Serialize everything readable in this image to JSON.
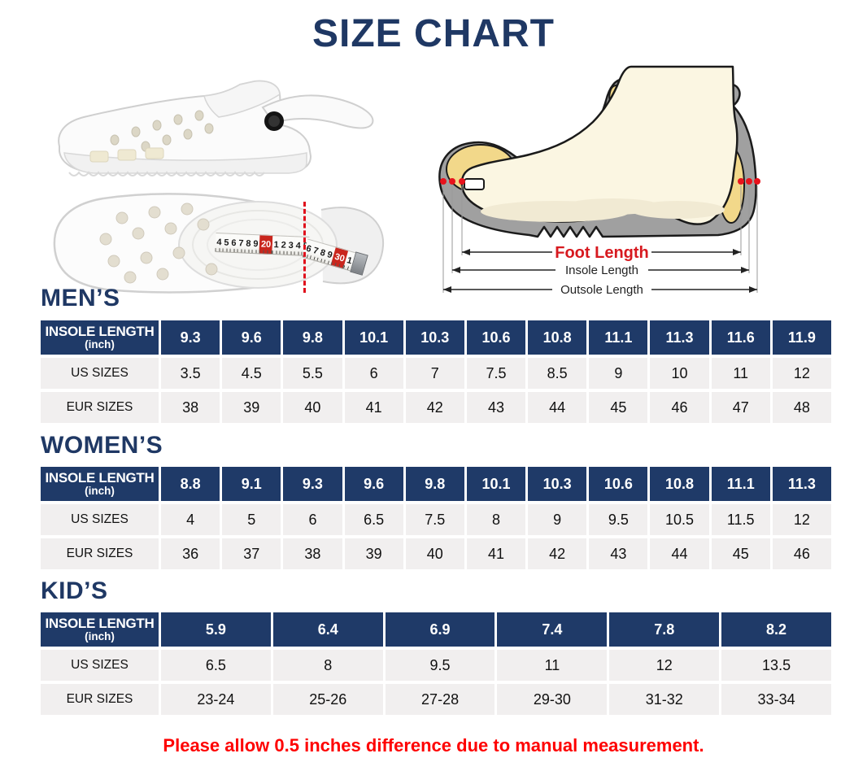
{
  "title": "SIZE CHART",
  "diagram": {
    "foot_length_label": "Foot Length",
    "insole_length_label": "Insole Length",
    "outsole_length_label": "Outsole Length"
  },
  "tape": {
    "segment1": [
      "4",
      "5",
      "6",
      "7",
      "8",
      "9",
      "20",
      "1",
      "2",
      "3",
      "4",
      "5"
    ],
    "segment2": [
      "6",
      "7",
      "8",
      "9",
      "30",
      "1"
    ],
    "red_values": [
      "20",
      "30"
    ]
  },
  "chart_data": [
    {
      "type": "table",
      "title": "MEN’S",
      "row_header": {
        "line1": "INSOLE LENGTH",
        "line2": "(inch)"
      },
      "insole_lengths": [
        "9.3",
        "9.6",
        "9.8",
        "10.1",
        "10.3",
        "10.6",
        "10.8",
        "11.1",
        "11.3",
        "11.6",
        "11.9"
      ],
      "rows": [
        {
          "label": "US SIZES",
          "values": [
            "3.5",
            "4.5",
            "5.5",
            "6",
            "7",
            "7.5",
            "8.5",
            "9",
            "10",
            "11",
            "12"
          ]
        },
        {
          "label": "EUR SIZES",
          "values": [
            "38",
            "39",
            "40",
            "41",
            "42",
            "43",
            "44",
            "45",
            "46",
            "47",
            "48"
          ]
        }
      ]
    },
    {
      "type": "table",
      "title": "WOMEN’S",
      "row_header": {
        "line1": "INSOLE LENGTH",
        "line2": "(inch)"
      },
      "insole_lengths": [
        "8.8",
        "9.1",
        "9.3",
        "9.6",
        "9.8",
        "10.1",
        "10.3",
        "10.6",
        "10.8",
        "11.1",
        "11.3"
      ],
      "rows": [
        {
          "label": "US SIZES",
          "values": [
            "4",
            "5",
            "6",
            "6.5",
            "7.5",
            "8",
            "9",
            "9.5",
            "10.5",
            "11.5",
            "12"
          ]
        },
        {
          "label": "EUR SIZES",
          "values": [
            "36",
            "37",
            "38",
            "39",
            "40",
            "41",
            "42",
            "43",
            "44",
            "45",
            "46"
          ]
        }
      ]
    },
    {
      "type": "table",
      "title": "KID’S",
      "row_header": {
        "line1": "INSOLE LENGTH",
        "line2": "(inch)"
      },
      "insole_lengths": [
        "5.9",
        "6.4",
        "6.9",
        "7.4",
        "7.8",
        "8.2"
      ],
      "rows": [
        {
          "label": "US SIZES",
          "values": [
            "6.5",
            "8",
            "9.5",
            "11",
            "12",
            "13.5"
          ]
        },
        {
          "label": "EUR SIZES",
          "values": [
            "23-24",
            "25-26",
            "27-28",
            "29-30",
            "31-32",
            "33-34"
          ]
        }
      ]
    }
  ],
  "footnote": "Please allow 0.5 inches difference due to manual measurement.",
  "colors": {
    "navy": "#1f3a68",
    "title_navy": "#1f3864",
    "row_gray": "#f1efef",
    "note_red": "#fe0000",
    "foot_length_red": "#d7191f",
    "insole_yellow": "#f2d88a",
    "outsole_gray": "#a0a0a0"
  }
}
